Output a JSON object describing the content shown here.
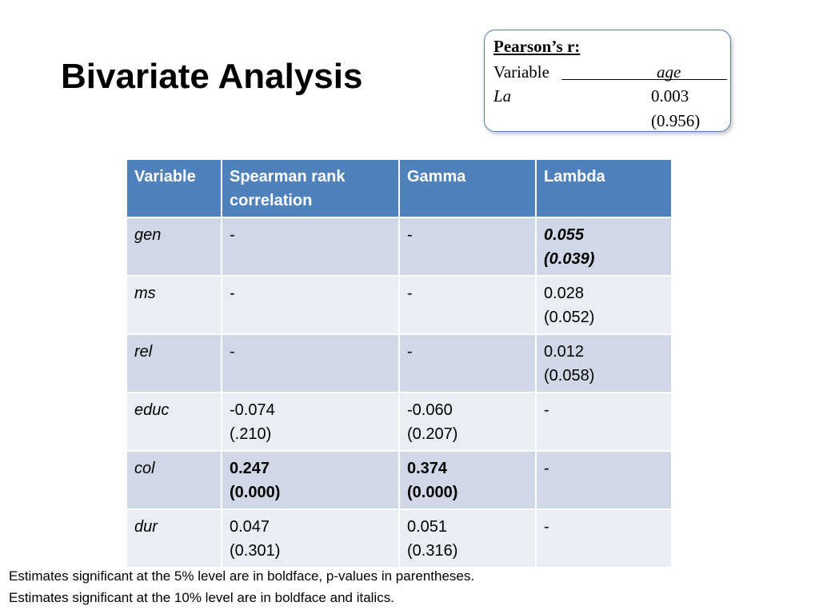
{
  "slide": {
    "title": "Bivariate Analysis"
  },
  "pearson_box": {
    "title": "Pearson’s r:",
    "variable_header": "Variable",
    "column_header": "age",
    "row_label": "La",
    "value": "0.003",
    "p_value": "(0.956)"
  },
  "table": {
    "headers": {
      "variable": "Variable",
      "spearman": "Spearman rank correlation",
      "gamma": "Gamma",
      "lambda": "Lambda"
    },
    "rows": [
      {
        "variable": "gen",
        "spearman": {
          "value": "-",
          "p": ""
        },
        "gamma": {
          "value": "-",
          "p": ""
        },
        "lambda": {
          "value": "0.055",
          "p": "(0.039)"
        }
      },
      {
        "variable": "ms",
        "spearman": {
          "value": "-",
          "p": ""
        },
        "gamma": {
          "value": "-",
          "p": ""
        },
        "lambda": {
          "value": "0.028",
          "p": "(0.052)"
        }
      },
      {
        "variable": "rel",
        "spearman": {
          "value": "-",
          "p": ""
        },
        "gamma": {
          "value": "-",
          "p": ""
        },
        "lambda": {
          "value": "0.012",
          "p": "(0.058)"
        }
      },
      {
        "variable": "educ",
        "spearman": {
          "value": "-0.074",
          "p": "(.210)"
        },
        "gamma": {
          "value": "-0.060",
          "p": "(0.207)"
        },
        "lambda": {
          "value": "-",
          "p": ""
        }
      },
      {
        "variable": "col",
        "spearman": {
          "value": "0.247",
          "p": "(0.000)"
        },
        "gamma": {
          "value": "0.374",
          "p": "(0.000)"
        },
        "lambda": {
          "value": "-",
          "p": ""
        }
      },
      {
        "variable": "dur",
        "spearman": {
          "value": "0.047",
          "p": "(0.301)"
        },
        "gamma": {
          "value": "0.051",
          "p": "(0.316)"
        },
        "lambda": {
          "value": "-",
          "p": ""
        }
      }
    ]
  },
  "footnotes": [
    "Estimates significant at the 5% level are in boldface, p-values in parentheses.",
    "Estimates significant at the 10% level are in boldface and italics."
  ],
  "colors": {
    "header_bg": "#4f81bd",
    "band_dark": "#d0d8e8",
    "band_light": "#e9edf4",
    "box_border": "#4a7ebb"
  }
}
